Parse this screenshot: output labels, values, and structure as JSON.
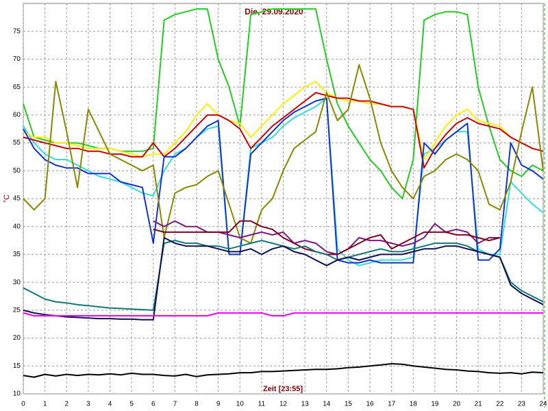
{
  "chart_data": {
    "type": "line",
    "title": "Die, 29.09.2020",
    "x_label": "Zeit [23:55]",
    "y_label": "°C",
    "xlim": [
      0,
      24
    ],
    "ylim": [
      10,
      80
    ],
    "xticks": [
      0,
      1,
      2,
      3,
      4,
      5,
      6,
      7,
      8,
      9,
      10,
      11,
      12,
      13,
      14,
      15,
      16,
      17,
      18,
      19,
      20,
      21,
      22,
      23,
      24
    ],
    "yticks": [
      10,
      15,
      20,
      25,
      30,
      35,
      40,
      45,
      50,
      55,
      60,
      65,
      70,
      75
    ],
    "grid": true,
    "x": [
      0,
      0.5,
      1,
      1.5,
      2,
      2.5,
      3,
      3.5,
      4,
      4.5,
      5,
      5.5,
      6,
      6.5,
      7,
      7.5,
      8,
      8.5,
      9,
      9.5,
      10,
      10.5,
      11,
      11.5,
      12,
      12.5,
      13,
      13.5,
      14,
      14.5,
      15,
      15.5,
      16,
      16.5,
      17,
      17.5,
      18,
      18.5,
      19,
      19.5,
      20,
      20.5,
      21,
      21.5,
      22,
      22.5,
      23,
      23.5,
      24
    ],
    "series": [
      {
        "color": "#22cc22",
        "values": [
          62,
          56,
          55.5,
          55,
          55,
          55,
          54.5,
          54,
          54,
          53.5,
          53.5,
          53.5,
          54,
          77,
          78,
          78.5,
          79,
          79,
          70,
          65,
          58,
          78,
          78.5,
          79,
          79,
          79,
          79,
          79,
          70,
          62,
          58,
          55,
          52,
          50,
          47,
          45,
          52,
          77,
          78,
          78.5,
          78.5,
          78,
          65,
          58,
          52,
          50,
          49,
          51,
          50
        ]
      },
      {
        "color": "#33dddd",
        "values": [
          58,
          55,
          53,
          52,
          52,
          51,
          50,
          49,
          48.5,
          48,
          47,
          46,
          45.5,
          50,
          53,
          54,
          56,
          57.5,
          58,
          35,
          35,
          54,
          55,
          56,
          58,
          59.5,
          60.5,
          61.5,
          63,
          36,
          34,
          33,
          33.5,
          34,
          34,
          34,
          34.5,
          53,
          54,
          55.5,
          57,
          57,
          36,
          35,
          35,
          48,
          46,
          44,
          42.5
        ]
      },
      {
        "color": "#ffee00",
        "values": [
          57,
          56,
          56,
          55,
          55,
          54.5,
          54,
          54,
          54,
          53.5,
          53,
          52.5,
          53,
          53,
          55,
          57,
          60,
          62,
          60,
          59,
          58.5,
          56,
          58,
          60,
          62,
          63.5,
          65,
          66,
          64,
          63,
          62.5,
          62.5,
          62,
          62,
          61.5,
          61.5,
          61,
          52,
          55,
          58,
          60,
          61,
          59,
          58.5,
          58,
          56,
          55,
          54,
          53.5
        ]
      },
      {
        "color": "#cc0000",
        "values": [
          56,
          55.5,
          55,
          54.5,
          54,
          54,
          53.5,
          53.5,
          53,
          53,
          52.5,
          52.5,
          55,
          52.5,
          54,
          56,
          58,
          60,
          60,
          59,
          57.5,
          54,
          56,
          58,
          59.5,
          61,
          62.5,
          64,
          63.5,
          63,
          63,
          62.5,
          62.5,
          62,
          61.5,
          61.5,
          61,
          50.5,
          54,
          56.5,
          58.5,
          59.5,
          58.5,
          58,
          57.5,
          56,
          55,
          54,
          53.5
        ]
      },
      {
        "color": "#1133cc",
        "values": [
          57.5,
          54,
          52,
          51,
          50.5,
          50.5,
          49.5,
          49.5,
          49.5,
          48,
          47.5,
          47,
          37,
          52.5,
          52.5,
          54,
          56,
          58,
          59,
          35,
          35,
          53,
          55,
          57,
          59,
          60.5,
          61.5,
          62.5,
          63,
          34,
          33.5,
          33.5,
          34,
          33.5,
          33.5,
          33.5,
          33.5,
          55,
          53,
          55.5,
          57,
          58.5,
          34,
          34,
          36,
          55,
          51,
          50,
          48.5
        ]
      },
      {
        "color": "#888800",
        "values": [
          45,
          43,
          45,
          66,
          57,
          47,
          61,
          57,
          53,
          52,
          51,
          50,
          51,
          38,
          46,
          47,
          47.5,
          49,
          50,
          44,
          38,
          37,
          43,
          45,
          50,
          54,
          55.5,
          57,
          64,
          59,
          61,
          69,
          63,
          55,
          50,
          47,
          45,
          49,
          50,
          52,
          53,
          52,
          50,
          44,
          43,
          48,
          57,
          65,
          50
        ]
      },
      {
        "color": "#7a1a7a",
        "values": [
          null,
          null,
          null,
          null,
          null,
          null,
          null,
          null,
          null,
          null,
          null,
          null,
          41,
          40,
          41,
          40,
          40,
          39,
          39,
          38.5,
          38,
          38.5,
          39,
          38.5,
          39,
          37,
          37.5,
          37,
          35.5,
          35,
          36,
          38,
          37.5,
          37.5,
          37,
          36.5,
          37,
          38,
          40.5,
          39,
          39.5,
          39,
          37,
          38,
          38,
          null,
          null,
          null,
          null
        ]
      },
      {
        "color": "#800020",
        "values": [
          null,
          null,
          null,
          null,
          null,
          null,
          null,
          null,
          null,
          null,
          null,
          null,
          39.5,
          39,
          39,
          39,
          39,
          39,
          39,
          39,
          41,
          41,
          40,
          39.5,
          38,
          37,
          36,
          35.5,
          35,
          35,
          36,
          37,
          38,
          38.5,
          36,
          37,
          38,
          39,
          39,
          39,
          38.5,
          38.5,
          38,
          37.5,
          38,
          null,
          null,
          null,
          null
        ]
      },
      {
        "color": "#117777",
        "values": [
          29,
          28,
          27,
          26.5,
          26.3,
          26,
          25.8,
          25.6,
          25.4,
          25.3,
          25.2,
          25.1,
          25,
          37,
          37.5,
          37,
          37,
          36.5,
          36.5,
          36,
          36.5,
          37,
          37.5,
          37,
          36.5,
          36,
          36.5,
          35.5,
          35,
          34,
          34.5,
          35,
          35.5,
          36,
          35.5,
          35.5,
          36,
          36.5,
          37,
          37,
          37,
          36.5,
          35.5,
          35,
          34.5,
          30,
          28.5,
          27.5,
          26.5
        ]
      },
      {
        "color": "#101050",
        "values": [
          25,
          24.5,
          24.2,
          24,
          23.8,
          23.7,
          23.6,
          23.5,
          23.5,
          23.4,
          23.4,
          23.3,
          23.3,
          38,
          37,
          36.5,
          36.5,
          36.5,
          36,
          35.5,
          35.5,
          36,
          35,
          36,
          36.5,
          35.5,
          35,
          34,
          33,
          34,
          34.5,
          34,
          34.5,
          35,
          35,
          35,
          35.5,
          36,
          36,
          36.5,
          36.5,
          36,
          35.5,
          35,
          34.5,
          29.5,
          28,
          27,
          26
        ]
      },
      {
        "color": "#ee00ee",
        "values": [
          24.5,
          24,
          24,
          24,
          24,
          24,
          24,
          24,
          24,
          24,
          24,
          24,
          24,
          24,
          24,
          24,
          24,
          24,
          24.5,
          24.5,
          24.5,
          24.5,
          24.5,
          24,
          24,
          24.5,
          24.5,
          24.5,
          24.5,
          24.5,
          24.5,
          24.5,
          24.5,
          24.5,
          24.5,
          24.5,
          24.5,
          24.5,
          24.5,
          24.5,
          24.5,
          24.5,
          24.5,
          24.5,
          24.5,
          24.5,
          24.5,
          24.5,
          24.5
        ]
      },
      {
        "color": "#000000",
        "values": [
          13.3,
          13,
          13.5,
          13.2,
          13.5,
          13.3,
          13.5,
          13.4,
          13.6,
          13.4,
          13.7,
          13.5,
          13.5,
          13.3,
          13.2,
          13.5,
          13.1,
          13.4,
          13.5,
          13.6,
          13.8,
          13.8,
          14,
          14,
          14.1,
          14.2,
          14.3,
          14.4,
          14.4,
          14.5,
          14.7,
          14.8,
          15,
          15.2,
          15.4,
          15.3,
          15,
          14.8,
          14.6,
          14.4,
          14.3,
          14.1,
          14,
          13.8,
          13.7,
          13.8,
          13.6,
          13.9,
          13.8
        ]
      }
    ]
  }
}
